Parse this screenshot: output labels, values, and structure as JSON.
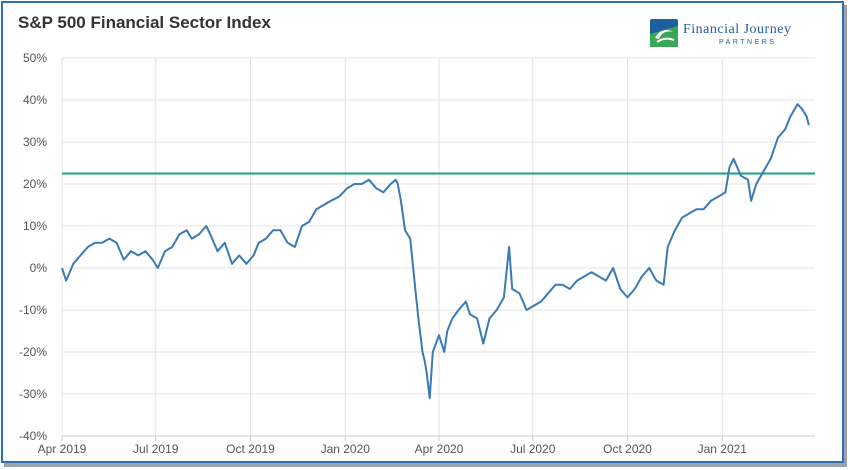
{
  "chart_data": {
    "type": "line",
    "title": "S&P 500 Financial Sector Index",
    "xlabel": "",
    "ylabel": "",
    "x_ticks": [
      "Apr 2019",
      "Jul 2019",
      "Oct 2019",
      "Jan 2020",
      "Apr 2020",
      "Jul 2020",
      "Oct 2020",
      "Jan 2021"
    ],
    "y_ticks": [
      "50%",
      "40%",
      "30%",
      "20%",
      "10%",
      "0%",
      "-10%",
      "-20%",
      "-30%",
      "-40%"
    ],
    "ylim": [
      -40,
      50
    ],
    "xlim": [
      "2019-04-01",
      "2021-04-01"
    ],
    "grid": true,
    "series": [
      {
        "color": "#3a7ab5",
        "points": [
          [
            "2019-04-01",
            0
          ],
          [
            "2019-04-05",
            -3
          ],
          [
            "2019-04-12",
            1
          ],
          [
            "2019-04-19",
            3
          ],
          [
            "2019-04-26",
            5
          ],
          [
            "2019-05-03",
            6
          ],
          [
            "2019-05-10",
            6
          ],
          [
            "2019-05-17",
            7
          ],
          [
            "2019-05-24",
            6
          ],
          [
            "2019-05-31",
            2
          ],
          [
            "2019-06-07",
            4
          ],
          [
            "2019-06-14",
            3
          ],
          [
            "2019-06-21",
            4
          ],
          [
            "2019-06-28",
            2
          ],
          [
            "2019-07-03",
            0
          ],
          [
            "2019-07-10",
            4
          ],
          [
            "2019-07-17",
            5
          ],
          [
            "2019-07-24",
            8
          ],
          [
            "2019-07-31",
            9
          ],
          [
            "2019-08-05",
            7
          ],
          [
            "2019-08-12",
            8
          ],
          [
            "2019-08-19",
            10
          ],
          [
            "2019-08-23",
            8
          ],
          [
            "2019-08-30",
            4
          ],
          [
            "2019-09-06",
            6
          ],
          [
            "2019-09-13",
            1
          ],
          [
            "2019-09-20",
            3
          ],
          [
            "2019-09-27",
            1
          ],
          [
            "2019-10-04",
            3
          ],
          [
            "2019-10-09",
            6
          ],
          [
            "2019-10-16",
            7
          ],
          [
            "2019-10-23",
            9
          ],
          [
            "2019-10-30",
            9
          ],
          [
            "2019-11-06",
            6
          ],
          [
            "2019-11-13",
            5
          ],
          [
            "2019-11-20",
            10
          ],
          [
            "2019-11-27",
            11
          ],
          [
            "2019-12-04",
            14
          ],
          [
            "2019-12-11",
            15
          ],
          [
            "2019-12-18",
            16
          ],
          [
            "2019-12-26",
            17
          ],
          [
            "2020-01-03",
            19
          ],
          [
            "2020-01-10",
            20
          ],
          [
            "2020-01-17",
            20
          ],
          [
            "2020-01-24",
            21
          ],
          [
            "2020-01-31",
            19
          ],
          [
            "2020-02-07",
            18
          ],
          [
            "2020-02-14",
            20
          ],
          [
            "2020-02-19",
            21
          ],
          [
            "2020-02-21",
            20
          ],
          [
            "2020-02-24",
            16
          ],
          [
            "2020-02-28",
            9
          ],
          [
            "2020-03-04",
            7
          ],
          [
            "2020-03-09",
            -5
          ],
          [
            "2020-03-12",
            -12
          ],
          [
            "2020-03-16",
            -20
          ],
          [
            "2020-03-18",
            -22
          ],
          [
            "2020-03-20",
            -25
          ],
          [
            "2020-03-23",
            -31
          ],
          [
            "2020-03-26",
            -20
          ],
          [
            "2020-04-01",
            -16
          ],
          [
            "2020-04-06",
            -20
          ],
          [
            "2020-04-09",
            -15
          ],
          [
            "2020-04-14",
            -12
          ],
          [
            "2020-04-20",
            -10
          ],
          [
            "2020-04-27",
            -8
          ],
          [
            "2020-05-01",
            -11
          ],
          [
            "2020-05-08",
            -12
          ],
          [
            "2020-05-14",
            -18
          ],
          [
            "2020-05-20",
            -12
          ],
          [
            "2020-05-27",
            -10
          ],
          [
            "2020-06-03",
            -7
          ],
          [
            "2020-06-08",
            5
          ],
          [
            "2020-06-11",
            -5
          ],
          [
            "2020-06-18",
            -6
          ],
          [
            "2020-06-25",
            -10
          ],
          [
            "2020-07-02",
            -9
          ],
          [
            "2020-07-09",
            -8
          ],
          [
            "2020-07-16",
            -6
          ],
          [
            "2020-07-23",
            -4
          ],
          [
            "2020-07-30",
            -4
          ],
          [
            "2020-08-06",
            -5
          ],
          [
            "2020-08-13",
            -3
          ],
          [
            "2020-08-20",
            -2
          ],
          [
            "2020-08-27",
            -1
          ],
          [
            "2020-09-03",
            -2
          ],
          [
            "2020-09-10",
            -3
          ],
          [
            "2020-09-17",
            0
          ],
          [
            "2020-09-24",
            -5
          ],
          [
            "2020-10-01",
            -7
          ],
          [
            "2020-10-08",
            -5
          ],
          [
            "2020-10-15",
            -2
          ],
          [
            "2020-10-22",
            0
          ],
          [
            "2020-10-29",
            -3
          ],
          [
            "2020-11-05",
            -4
          ],
          [
            "2020-11-09",
            5
          ],
          [
            "2020-11-16",
            9
          ],
          [
            "2020-11-23",
            12
          ],
          [
            "2020-11-30",
            13
          ],
          [
            "2020-12-07",
            14
          ],
          [
            "2020-12-14",
            14
          ],
          [
            "2020-12-21",
            16
          ],
          [
            "2020-12-28",
            17
          ],
          [
            "2021-01-04",
            18
          ],
          [
            "2021-01-08",
            24
          ],
          [
            "2021-01-12",
            26
          ],
          [
            "2021-01-19",
            22
          ],
          [
            "2021-01-26",
            21
          ],
          [
            "2021-01-29",
            16
          ],
          [
            "2021-02-03",
            20
          ],
          [
            "2021-02-10",
            23
          ],
          [
            "2021-02-17",
            26
          ],
          [
            "2021-02-24",
            31
          ],
          [
            "2021-03-03",
            33
          ],
          [
            "2021-03-08",
            36
          ],
          [
            "2021-03-15",
            39
          ],
          [
            "2021-03-19",
            38
          ],
          [
            "2021-03-24",
            36
          ],
          [
            "2021-03-26",
            34
          ]
        ]
      }
    ],
    "reference_line": {
      "value": 22.5,
      "color": "#1aa37a"
    }
  },
  "logo": {
    "name": "Financial Journey",
    "sub": "PARTNERS",
    "colors": {
      "blue": "#1f5fa0",
      "green": "#3aa657",
      "light_blue": "#5aa0d8"
    }
  },
  "colors": {
    "grid": "#e3e3e3",
    "axis": "#cccccc",
    "frame": "#2f6fb3"
  }
}
